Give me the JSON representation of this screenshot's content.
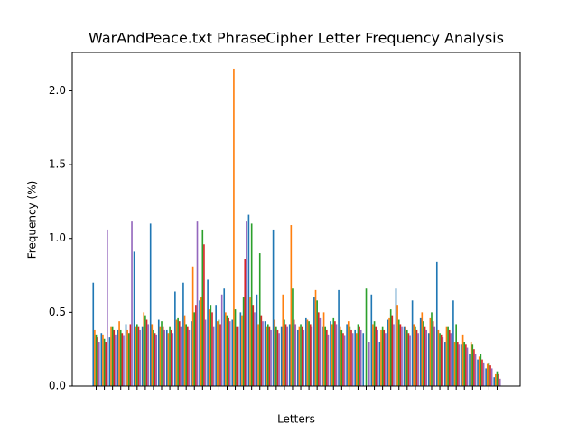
{
  "chart_data": {
    "type": "bar",
    "title": "WarAndPeace.txt PhraseCipher Letter Frequency Analysis",
    "xlabel": "Letters",
    "ylabel": "Frequency (%)",
    "categories": [
      null,
      null,
      null,
      null,
      null,
      null,
      null,
      null,
      null,
      null,
      null,
      null,
      null,
      null,
      null,
      null,
      null,
      null,
      null,
      null,
      null,
      null,
      null,
      null,
      null,
      null,
      null,
      null,
      null,
      null,
      null,
      null,
      null,
      null,
      null,
      null,
      null,
      null,
      null,
      null,
      null,
      null,
      null,
      null,
      null,
      null,
      null,
      null,
      null,
      null
    ],
    "series": [
      {
        "color": "#1f77b4",
        "values": [
          0.7,
          0.36,
          0.33,
          0.38,
          0.42,
          0.91,
          0.4,
          1.1,
          0.45,
          0.38,
          0.64,
          0.7,
          0.44,
          0.58,
          0.72,
          0.55,
          0.66,
          0.45,
          0.5,
          1.16,
          0.62,
          0.44,
          1.06,
          0.4,
          0.42,
          0.38,
          0.46,
          0.6,
          0.4,
          0.44,
          0.65,
          0.42,
          0.38,
          0.36,
          0.62,
          0.3,
          0.45,
          0.66,
          0.4,
          0.58,
          0.46,
          0.36,
          0.84,
          0.3,
          0.58,
          0.28,
          0.22,
          0.18,
          0.12,
          0.06
        ]
      },
      {
        "color": "#ff7f0e",
        "values": [
          0.38,
          0.35,
          0.4,
          0.44,
          0.38,
          0.4,
          0.5,
          0.42,
          0.4,
          0.36,
          0.45,
          0.48,
          0.81,
          0.6,
          0.52,
          0.44,
          0.5,
          2.15,
          0.48,
          0.6,
          0.42,
          0.4,
          0.45,
          0.62,
          1.09,
          0.4,
          0.45,
          0.65,
          0.5,
          0.42,
          0.4,
          0.44,
          0.36,
          0.0,
          0.42,
          0.38,
          0.46,
          0.55,
          0.4,
          0.42,
          0.5,
          0.46,
          0.38,
          0.4,
          0.3,
          0.35,
          0.3,
          0.2,
          0.15,
          0.08
        ]
      },
      {
        "color": "#2ca02c",
        "values": [
          0.35,
          0.32,
          0.4,
          0.38,
          0.36,
          0.42,
          0.48,
          0.38,
          0.44,
          0.4,
          0.46,
          0.42,
          0.5,
          1.06,
          0.55,
          0.45,
          0.48,
          0.52,
          0.6,
          1.1,
          0.9,
          0.42,
          0.4,
          0.45,
          0.66,
          0.42,
          0.44,
          0.58,
          0.4,
          0.46,
          0.38,
          0.4,
          0.42,
          0.66,
          0.44,
          0.4,
          0.52,
          0.45,
          0.38,
          0.4,
          0.44,
          0.5,
          0.36,
          0.4,
          0.42,
          0.3,
          0.28,
          0.22,
          0.16,
          0.1
        ]
      },
      {
        "color": "#d62728",
        "values": [
          0.33,
          0.3,
          0.38,
          0.36,
          0.42,
          0.4,
          0.45,
          0.36,
          0.4,
          0.38,
          0.44,
          0.4,
          0.55,
          0.96,
          0.5,
          0.42,
          0.46,
          0.4,
          0.86,
          0.55,
          0.48,
          0.4,
          0.38,
          0.42,
          0.45,
          0.4,
          0.42,
          0.5,
          0.38,
          0.44,
          0.36,
          0.38,
          0.4,
          0.0,
          0.4,
          0.38,
          0.48,
          0.42,
          0.36,
          0.38,
          0.4,
          0.44,
          0.35,
          0.38,
          0.3,
          0.28,
          0.25,
          0.18,
          0.14,
          0.08
        ]
      },
      {
        "color": "#9467bd",
        "values": [
          0.3,
          1.06,
          0.35,
          0.34,
          1.12,
          0.38,
          0.42,
          0.35,
          0.38,
          0.36,
          0.4,
          0.38,
          1.12,
          0.45,
          0.4,
          0.62,
          0.44,
          0.4,
          1.12,
          0.5,
          0.44,
          0.38,
          0.36,
          0.4,
          0.42,
          0.38,
          0.4,
          0.46,
          0.35,
          0.42,
          0.34,
          0.36,
          0.38,
          0.3,
          0.38,
          0.36,
          0.42,
          0.4,
          0.34,
          0.36,
          0.38,
          0.4,
          0.33,
          0.36,
          0.28,
          0.26,
          0.22,
          0.16,
          0.12,
          0.05
        ]
      }
    ],
    "ylim": [
      0,
      2.26
    ],
    "yticks": [
      {
        "value": 0,
        "label": "0.0"
      },
      0.5,
      {
        "value": 1,
        "label": "1.0"
      },
      1.5,
      {
        "value": 2,
        "label": "2.0"
      }
    ],
    "grid": false
  }
}
